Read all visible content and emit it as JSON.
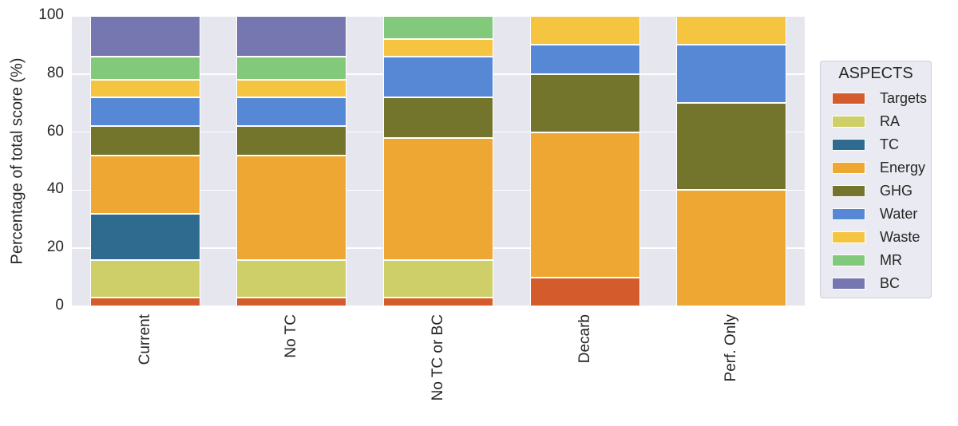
{
  "chart_data": {
    "type": "bar",
    "stacked": true,
    "title": "",
    "xlabel": "",
    "ylabel": "Percentage of total score (%)",
    "ylim": [
      0,
      100
    ],
    "yticks": [
      0,
      20,
      40,
      60,
      80,
      100
    ],
    "grid": true,
    "legend_title": "ASPECTS",
    "legend_position": "right",
    "categories": [
      "Current",
      "No TC",
      "No TC or BC",
      "Decarb",
      "Perf. Only"
    ],
    "series": [
      {
        "name": "Targets",
        "color": "#d45b2c",
        "values": [
          3,
          3,
          3,
          10,
          0
        ]
      },
      {
        "name": "RA",
        "color": "#cfcf6a",
        "values": [
          13,
          13,
          13,
          0,
          0
        ]
      },
      {
        "name": "TC",
        "color": "#2e6b8e",
        "values": [
          16,
          0,
          0,
          0,
          0
        ]
      },
      {
        "name": "Energy",
        "color": "#eea733",
        "values": [
          20,
          36,
          42,
          50,
          40
        ]
      },
      {
        "name": "GHG",
        "color": "#73752d",
        "values": [
          10,
          10,
          14,
          20,
          30
        ]
      },
      {
        "name": "Water",
        "color": "#5788d6",
        "values": [
          10,
          10,
          14,
          10,
          20
        ]
      },
      {
        "name": "Waste",
        "color": "#f5c542",
        "values": [
          6,
          6,
          6,
          10,
          10
        ]
      },
      {
        "name": "MR",
        "color": "#83c97c",
        "values": [
          8,
          8,
          8,
          0,
          0
        ]
      },
      {
        "name": "BC",
        "color": "#7676b0",
        "values": [
          14,
          14,
          0,
          0,
          0
        ]
      }
    ]
  }
}
